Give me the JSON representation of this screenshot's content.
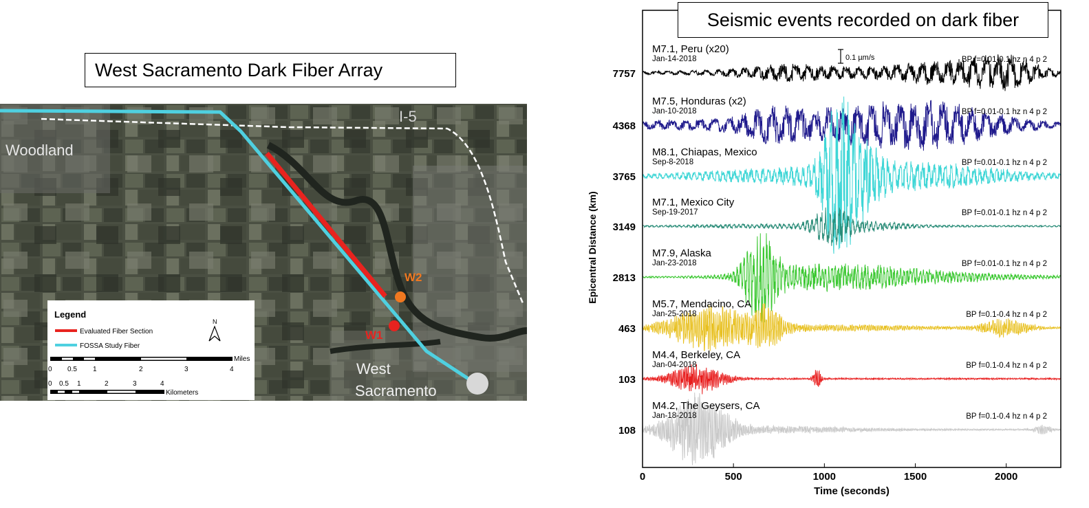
{
  "map": {
    "title": "West Sacramento Dark Fiber Array",
    "places": [
      "Woodland",
      "I-5",
      "West",
      "Sacramento"
    ],
    "wells": [
      {
        "label": "W2",
        "color": "#f07820"
      },
      {
        "label": "W1",
        "color": "#e8231f"
      }
    ],
    "legend": {
      "title": "Legend",
      "items": [
        {
          "label": "Evaluated Fiber Section",
          "color": "#e8231f"
        },
        {
          "label": "FOSSA Study Fiber",
          "color": "#4fd0e0"
        }
      ],
      "north": "N",
      "miles_label": "Miles",
      "miles_ticks": [
        "0",
        "0.5",
        "1",
        "2",
        "3",
        "4"
      ],
      "km_label": "Kilometers",
      "km_ticks": [
        "0",
        "0.5",
        "1",
        "2",
        "3",
        "4"
      ]
    }
  },
  "chart_data": {
    "type": "line",
    "title": "Seismic events recorded on dark fiber",
    "xlabel": "Time (seconds)",
    "ylabel": "Epicentral Distance (km)",
    "xlim": [
      0,
      2300
    ],
    "xticks": [
      0,
      500,
      1000,
      1500,
      2000
    ],
    "scale_bar": "0.1 µm/s",
    "traces": [
      {
        "distance": "7757",
        "event": "M7.1, Peru (x20)",
        "date": "Jan-14-2018",
        "filter": "BP f=0.01-0.1 hz n 4 p 2",
        "color": "#000000"
      },
      {
        "distance": "4368",
        "event": "M7.5, Honduras (x2)",
        "date": "Jan-10-2018",
        "filter": "BP f=0.01-0.1 hz n 4 p 2",
        "color": "#1f1a8c"
      },
      {
        "distance": "3765",
        "event": "M8.1, Chiapas, Mexico",
        "date": "Sep-8-2018",
        "filter": "BP f=0.01-0.1 hz n 4 p 2",
        "color": "#3fd6d6"
      },
      {
        "distance": "3149",
        "event": "M7.1, Mexico City",
        "date": "Sep-19-2017",
        "filter": "BP f=0.01-0.1 hz n 4 p 2",
        "color": "#2a8c78"
      },
      {
        "distance": "2813",
        "event": "M7.9, Alaska",
        "date": "Jan-23-2018",
        "filter": "BP f=0.01-0.1 hz n 4 p 2",
        "color": "#3cc832"
      },
      {
        "distance": "463",
        "event": "M5.7, Mendacino, CA",
        "date": "Jan-25-2018",
        "filter": "BP f=0.1-0.4 hz n 4 p 2",
        "color": "#e8c020"
      },
      {
        "distance": "103",
        "event": "M4.4, Berkeley, CA",
        "date": "Jan-04-2018",
        "filter": "BP f=0.1-0.4 hz n 4 p 2",
        "color": "#e81e1e"
      },
      {
        "distance": "108",
        "event": "M4.2, The Geysers, CA",
        "date": "Jan-18-2018",
        "filter": "BP f=0.1-0.4 hz n 4 p 2",
        "color": "#c8c8c8"
      }
    ]
  }
}
